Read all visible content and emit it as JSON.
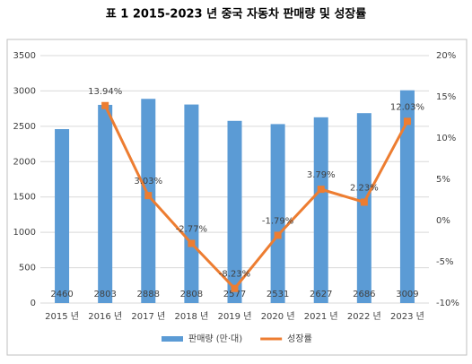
{
  "chart_data": {
    "type": "bar",
    "title": "표 1   2015-2023 년 중국 자동차 판매량 및 성장률",
    "categories": [
      "2015 년",
      "2016 년",
      "2017 년",
      "2018 년",
      "2019 년",
      "2020 년",
      "2021 년",
      "2022 년",
      "2023 년"
    ],
    "series": [
      {
        "name": "판매량 (만·대)",
        "color": "#5b9bd5",
        "values": [
          2460,
          2803,
          2888,
          2808,
          2577,
          2531,
          2627,
          2686,
          3009
        ]
      },
      {
        "name": "성장률",
        "color": "#ed7d31",
        "type": "line",
        "axis": "y2",
        "values": [
          null,
          13.94,
          3.03,
          -2.77,
          -8.23,
          -1.79,
          3.79,
          2.23,
          12.03
        ],
        "value_labels": [
          null,
          "13.94%",
          "3.03%",
          "-2.77%",
          "-8.23%",
          "-1.79%",
          "3.79%",
          "2.23%",
          "12.03%"
        ]
      }
    ],
    "ylim": [
      0,
      3500
    ],
    "yticks": [
      0,
      500,
      1000,
      1500,
      2000,
      2500,
      3000,
      3500
    ],
    "y2lim": [
      -10,
      20
    ],
    "y2ticks": [
      {
        "value": -10,
        "label": "-10%"
      },
      {
        "value": -5,
        "label": "-5%"
      },
      {
        "value": 0,
        "label": "0%"
      },
      {
        "value": 5,
        "label": "5%"
      },
      {
        "value": 10,
        "label": "10%"
      },
      {
        "value": 15,
        "label": "15%"
      },
      {
        "value": 20,
        "label": "20%"
      }
    ],
    "grid": true,
    "legend": "bottom"
  }
}
